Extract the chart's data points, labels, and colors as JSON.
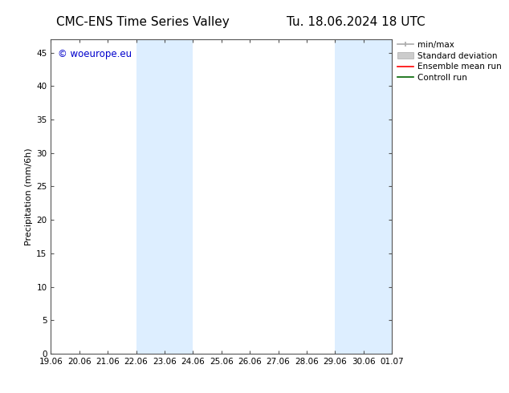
{
  "title_left": "CMC-ENS Time Series Valley",
  "title_right": "Tu. 18.06.2024 18 UTC",
  "ylabel": "Precipitation (mm/6h)",
  "watermark": "© woeurope.eu",
  "background_color": "#ffffff",
  "plot_bg_color": "#ffffff",
  "ylim": [
    0,
    47
  ],
  "yticks": [
    0,
    5,
    10,
    15,
    20,
    25,
    30,
    35,
    40,
    45
  ],
  "xtick_labels": [
    "19.06",
    "20.06",
    "21.06",
    "22.06",
    "23.06",
    "24.06",
    "25.06",
    "26.06",
    "27.06",
    "28.06",
    "29.06",
    "30.06",
    "01.07"
  ],
  "xtick_values": [
    0,
    1,
    2,
    3,
    4,
    5,
    6,
    7,
    8,
    9,
    10,
    11,
    12
  ],
  "shaded_regions": [
    {
      "x_start": 3,
      "x_end": 5,
      "color": "#ddeeff"
    },
    {
      "x_start": 10,
      "x_end": 12,
      "color": "#ddeeff"
    }
  ],
  "legend_labels": [
    "min/max",
    "Standard deviation",
    "Ensemble mean run",
    "Controll run"
  ],
  "watermark_color": "#0000cc",
  "title_fontsize": 11,
  "axis_label_fontsize": 8,
  "tick_fontsize": 7.5,
  "legend_fontsize": 7.5
}
